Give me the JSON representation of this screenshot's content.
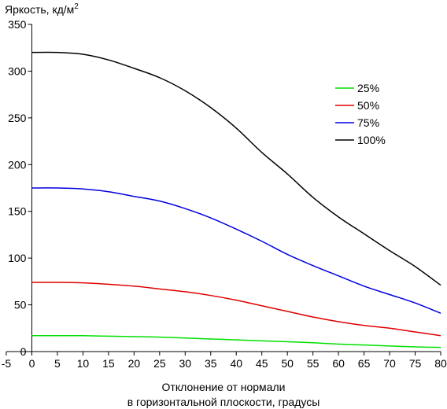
{
  "chart_data": {
    "type": "line",
    "title": "",
    "ylabel": "Яркость, кд/м",
    "ylabel_superscript": "2",
    "xlabel_lines": [
      "Отклонение от нормали",
      "в горизонтальной плоскости, градусы"
    ],
    "xlim": [
      -5,
      80
    ],
    "ylim": [
      0,
      350
    ],
    "xticks": [
      -5,
      0,
      5,
      10,
      15,
      20,
      25,
      30,
      35,
      40,
      45,
      50,
      55,
      60,
      65,
      70,
      75,
      80
    ],
    "yticks": [
      0,
      50,
      100,
      150,
      200,
      250,
      300,
      350
    ],
    "grid": false,
    "legend_position": "right",
    "series": [
      {
        "name": "25%",
        "color": "#00e000",
        "x": [
          0,
          5,
          10,
          15,
          20,
          25,
          30,
          35,
          40,
          45,
          50,
          55,
          60,
          65,
          70,
          75,
          80
        ],
        "y": [
          17,
          17,
          17,
          16.5,
          16,
          15.5,
          14.5,
          13.5,
          12.5,
          11.5,
          10.5,
          9.5,
          8,
          7,
          6,
          5,
          4.5
        ]
      },
      {
        "name": "50%",
        "color": "#e00000",
        "x": [
          0,
          5,
          10,
          15,
          20,
          25,
          30,
          35,
          40,
          45,
          50,
          55,
          60,
          65,
          70,
          75,
          80
        ],
        "y": [
          74,
          74,
          73.5,
          72,
          70,
          67,
          64,
          60,
          55,
          49,
          43,
          37,
          32,
          28,
          25,
          21,
          17
        ]
      },
      {
        "name": "75%",
        "color": "#0000e0",
        "x": [
          0,
          5,
          10,
          15,
          20,
          25,
          30,
          35,
          40,
          45,
          50,
          55,
          60,
          65,
          70,
          75,
          80
        ],
        "y": [
          175,
          175,
          174,
          171,
          166,
          161,
          153,
          143,
          131,
          118,
          104,
          92,
          81,
          70,
          61,
          52,
          41
        ]
      },
      {
        "name": "100%",
        "color": "#000000",
        "x": [
          0,
          5,
          10,
          15,
          20,
          25,
          30,
          35,
          40,
          45,
          50,
          55,
          60,
          65,
          70,
          75,
          80
        ],
        "y": [
          320,
          320,
          318,
          312,
          303,
          293,
          279,
          261,
          239,
          213,
          190,
          165,
          144,
          126,
          108,
          91,
          71
        ]
      }
    ]
  }
}
